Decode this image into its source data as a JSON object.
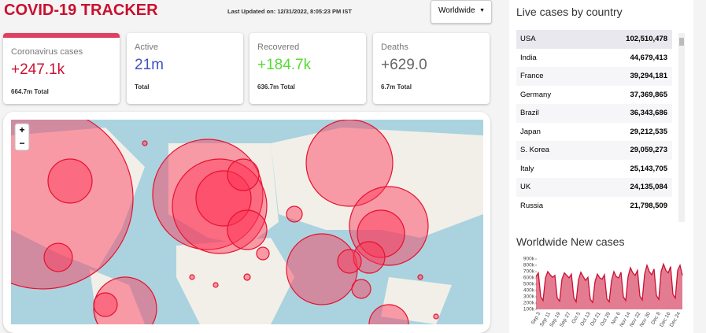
{
  "header": {
    "title": "COVID-19 TRACKER",
    "updated": "Last Updated on: 12/31/2022, 8:05:23 PM IST",
    "dropdown": "Worldwide"
  },
  "cards": [
    {
      "title": "Coronavirus cases",
      "value": "+247.1k",
      "total": "664.7m Total",
      "color": "#cc1034"
    },
    {
      "title": "Active",
      "value": "21m",
      "total": "Total",
      "color": "#3f51c5"
    },
    {
      "title": "Recovered",
      "value": "+184.7k",
      "total": "636.7m Total",
      "color": "#5ad936"
    },
    {
      "title": "Deaths",
      "value": "+629.0",
      "total": "6.7m Total",
      "color": "#666666"
    }
  ],
  "map": {
    "zoom_in": "+",
    "zoom_out": "−"
  },
  "table": {
    "title": "Live cases by country",
    "rows": [
      [
        "USA",
        "102,510,478"
      ],
      [
        "India",
        "44,679,413"
      ],
      [
        "France",
        "39,294,181"
      ],
      [
        "Germany",
        "37,369,865"
      ],
      [
        "Brazil",
        "36,343,686"
      ],
      [
        "Japan",
        "29,212,535"
      ],
      [
        "S. Korea",
        "29,059,273"
      ],
      [
        "Italy",
        "25,143,705"
      ],
      [
        "UK",
        "24,135,084"
      ],
      [
        "Russia",
        "21,798,509"
      ]
    ]
  },
  "new_cases_chart": {
    "type": "line",
    "title": "Worldwide New cases",
    "color": "#cc1034",
    "ylim": [
      100000,
      900000
    ],
    "yticks": [
      {
        "value": 100000,
        "label": "100k"
      },
      {
        "value": 200000,
        "label": "200k"
      },
      {
        "value": 300000,
        "label": "300k"
      },
      {
        "value": 400000,
        "label": "400k"
      },
      {
        "value": 500000,
        "label": "500k"
      },
      {
        "value": 600000,
        "label": "600k"
      },
      {
        "value": 700000,
        "label": "700k"
      },
      {
        "value": 800000,
        "label": "800k"
      },
      {
        "value": 900000,
        "label": "900k"
      }
    ],
    "xticks": [
      "Sep 3",
      "Sep 11",
      "Sep 19",
      "Sep 27",
      "Oct 5",
      "Oct 13",
      "Oct 21",
      "Oct 29",
      "Nov 6",
      "Nov 14",
      "Nov 22",
      "Nov 30",
      "Dec 8",
      "Dec 16",
      "Dec 24"
    ],
    "values": [
      620000,
      680000,
      300000,
      240000,
      600000,
      700000,
      650000,
      610000,
      640000,
      280000,
      230000,
      580000,
      680000,
      640000,
      600000,
      660000,
      290000,
      220000,
      570000,
      690000,
      620000,
      560000,
      610000,
      260000,
      210000,
      540000,
      660000,
      600000,
      580000,
      650000,
      270000,
      220000,
      560000,
      700000,
      620000,
      600000,
      690000,
      300000,
      240000,
      620000,
      760000,
      680000,
      640000,
      720000,
      310000,
      250000,
      660000,
      800000,
      700000,
      650000,
      740000,
      320000,
      260000,
      700000,
      820000,
      720000,
      680000,
      780000,
      340000,
      280000,
      720000,
      800000,
      640000
    ]
  }
}
